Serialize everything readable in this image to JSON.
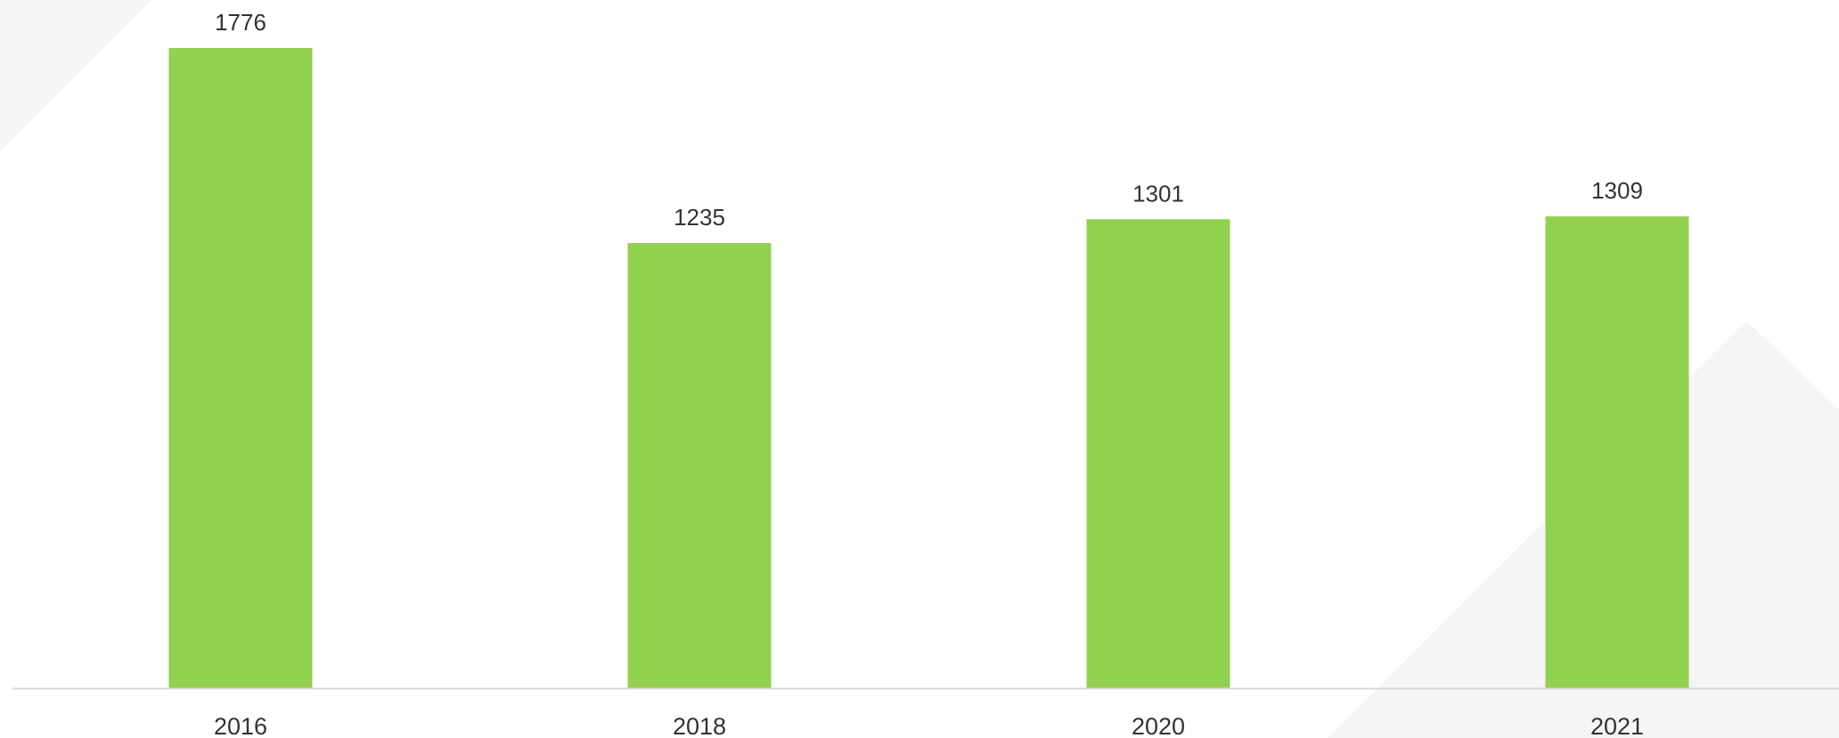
{
  "chart_data": {
    "type": "bar",
    "title": "",
    "xlabel": "",
    "ylabel": "",
    "categories": [
      "2016",
      "2018",
      "2020",
      "2021"
    ],
    "values": [
      1776,
      1235,
      1301,
      1309
    ],
    "ylim": [
      0,
      1776
    ],
    "grid": false,
    "legend": "none",
    "data_labels": [
      "1776",
      "1235",
      "1301",
      "1309"
    ]
  },
  "colors": {
    "bar": "#92d050",
    "axis": "#d9d9d9",
    "text": "#333333",
    "background_shape": "#f5f5f5"
  }
}
